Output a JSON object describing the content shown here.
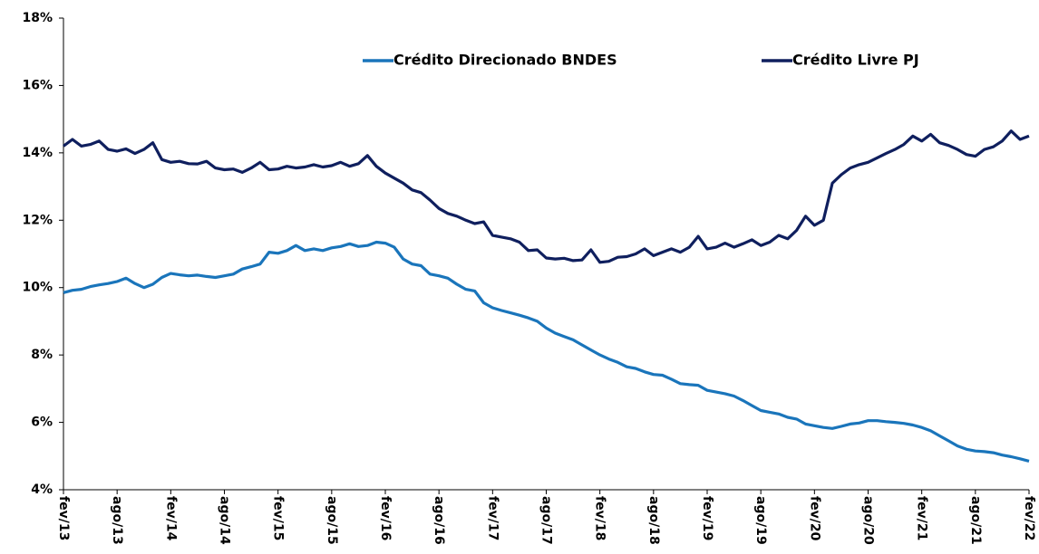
{
  "chart_data": {
    "type": "line",
    "categories": [
      "fev/13",
      null,
      null,
      null,
      null,
      null,
      "ago/13",
      null,
      null,
      null,
      null,
      null,
      "fev/14",
      null,
      null,
      null,
      null,
      null,
      "ago/14",
      null,
      null,
      null,
      null,
      null,
      "fev/15",
      null,
      null,
      null,
      null,
      null,
      "ago/15",
      null,
      null,
      null,
      null,
      null,
      "fev/16",
      null,
      null,
      null,
      null,
      null,
      "ago/16",
      null,
      null,
      null,
      null,
      null,
      "fev/17",
      null,
      null,
      null,
      null,
      null,
      "ago/17",
      null,
      null,
      null,
      null,
      null,
      "fev/18",
      null,
      null,
      null,
      null,
      null,
      "ago/18",
      null,
      null,
      null,
      null,
      null,
      "fev/19",
      null,
      null,
      null,
      null,
      null,
      "ago/19",
      null,
      null,
      null,
      null,
      null,
      "fev/20",
      null,
      null,
      null,
      null,
      null,
      "ago/20",
      null,
      null,
      null,
      null,
      null,
      "fev/21",
      null,
      null,
      null,
      null,
      null,
      "ago/21",
      null,
      null,
      null,
      null,
      null,
      "fev/22"
    ],
    "series": [
      {
        "name": "Crédito Direcionado BNDES",
        "color": "#1a75bb",
        "values": [
          9.85,
          9.92,
          9.95,
          10.03,
          10.08,
          10.12,
          10.18,
          10.28,
          10.12,
          10.0,
          10.1,
          10.3,
          10.42,
          10.38,
          10.35,
          10.37,
          10.33,
          10.3,
          10.35,
          10.4,
          10.55,
          10.62,
          10.7,
          11.05,
          11.02,
          11.1,
          11.25,
          11.1,
          11.15,
          11.1,
          11.18,
          11.22,
          11.3,
          11.22,
          11.25,
          11.35,
          11.32,
          11.2,
          10.85,
          10.7,
          10.65,
          10.4,
          10.35,
          10.28,
          10.1,
          9.95,
          9.9,
          9.55,
          9.4,
          9.32,
          9.25,
          9.18,
          9.1,
          9.0,
          8.8,
          8.65,
          8.55,
          8.45,
          8.3,
          8.15,
          8.0,
          7.88,
          7.78,
          7.65,
          7.6,
          7.5,
          7.42,
          7.4,
          7.28,
          7.15,
          7.12,
          7.1,
          6.95,
          6.9,
          6.85,
          6.78,
          6.65,
          6.5,
          6.35,
          6.3,
          6.25,
          6.15,
          6.1,
          5.95,
          5.9,
          5.85,
          5.82,
          5.88,
          5.95,
          5.98,
          6.05,
          6.05,
          6.02,
          6.0,
          5.97,
          5.92,
          5.85,
          5.75,
          5.6,
          5.45,
          5.3,
          5.2,
          5.15,
          5.13,
          5.1,
          5.03,
          4.98,
          4.92,
          4.85
        ]
      },
      {
        "name": "Crédito Livre PJ",
        "color": "#0f1f5e",
        "values": [
          14.2,
          14.4,
          14.2,
          14.25,
          14.35,
          14.1,
          14.05,
          14.12,
          13.98,
          14.1,
          14.3,
          13.8,
          13.72,
          13.75,
          13.68,
          13.67,
          13.75,
          13.55,
          13.5,
          13.52,
          13.42,
          13.55,
          13.72,
          13.5,
          13.52,
          13.6,
          13.55,
          13.58,
          13.65,
          13.58,
          13.62,
          13.72,
          13.6,
          13.68,
          13.92,
          13.6,
          13.4,
          13.25,
          13.1,
          12.9,
          12.82,
          12.6,
          12.35,
          12.2,
          12.12,
          12.0,
          11.9,
          11.95,
          11.55,
          11.5,
          11.45,
          11.35,
          11.1,
          11.12,
          10.88,
          10.85,
          10.87,
          10.8,
          10.82,
          11.12,
          10.75,
          10.78,
          10.9,
          10.92,
          11.0,
          11.15,
          10.95,
          11.05,
          11.15,
          11.05,
          11.2,
          11.52,
          11.15,
          11.2,
          11.32,
          11.2,
          11.3,
          11.42,
          11.25,
          11.35,
          11.55,
          11.45,
          11.7,
          12.12,
          11.85,
          12.0,
          13.1,
          13.35,
          13.55,
          13.65,
          13.72,
          13.85,
          13.98,
          14.1,
          14.25,
          14.5,
          14.35,
          14.55,
          14.3,
          14.22,
          14.1,
          13.95,
          13.9,
          14.1,
          14.18,
          14.35,
          14.65,
          14.4,
          14.5
        ]
      }
    ],
    "ylim": [
      4,
      18
    ],
    "yticks": [
      {
        "value": 4,
        "label": "4%"
      },
      {
        "value": 6,
        "label": "6%"
      },
      {
        "value": 8,
        "label": "8%"
      },
      {
        "value": 10,
        "label": "10%"
      },
      {
        "value": 12,
        "label": "12%"
      },
      {
        "value": 14,
        "label": "14%"
      },
      {
        "value": 16,
        "label": "16%"
      },
      {
        "value": 18,
        "label": "18%"
      }
    ],
    "legend": "top"
  }
}
